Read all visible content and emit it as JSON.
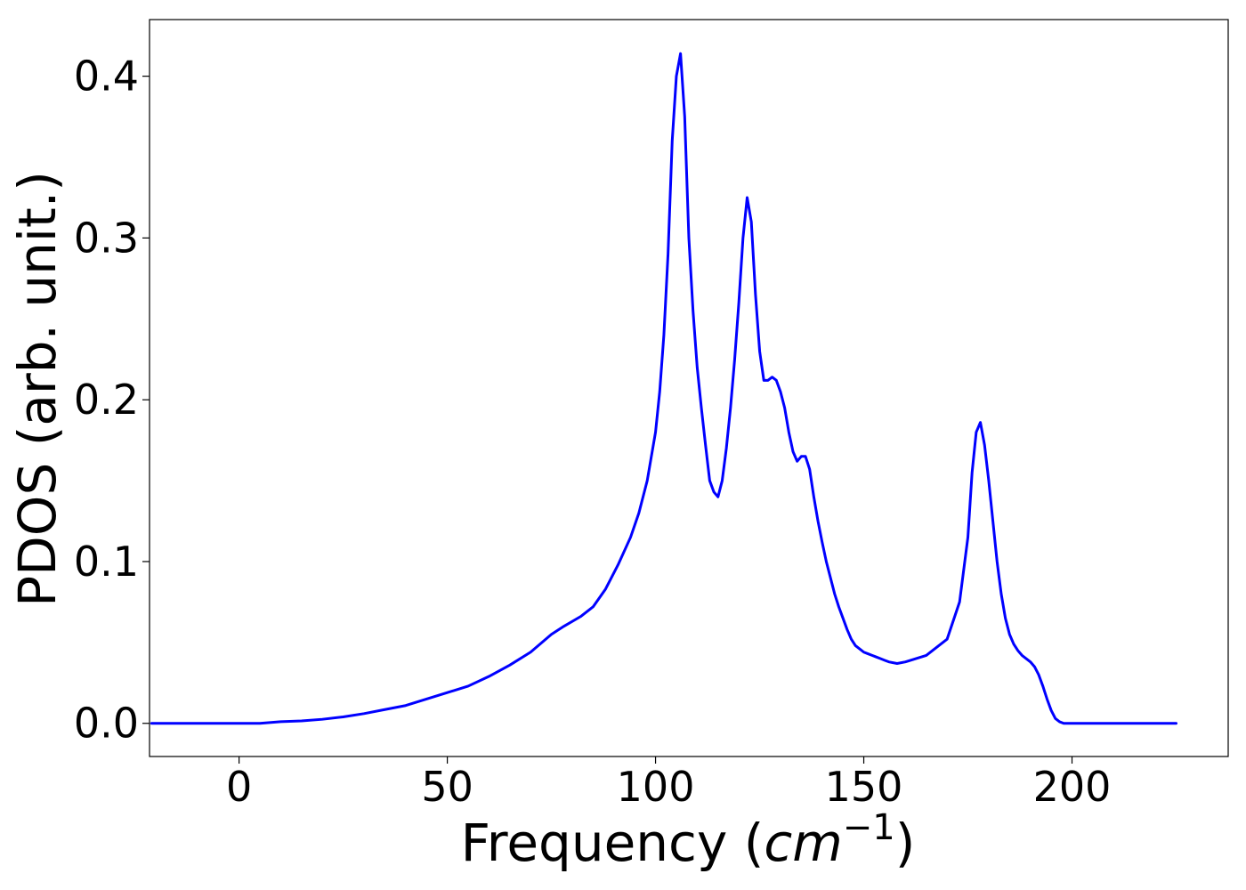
{
  "chart_data": {
    "type": "line",
    "xlabel": "Frequency (",
    "xlabel_unit": "cm",
    "xlabel_exponent": "−1",
    "xlabel_suffix": ")",
    "ylabel": "PDOS (arb. unit.)",
    "xlim": [
      -21.5,
      237.5
    ],
    "ylim": [
      -0.0205,
      0.435
    ],
    "xticks": [
      0,
      50,
      100,
      150,
      200
    ],
    "xtick_labels": [
      "0",
      "50",
      "100",
      "150",
      "200"
    ],
    "yticks": [
      0.0,
      0.1,
      0.2,
      0.3,
      0.4
    ],
    "ytick_labels": [
      "0.0",
      "0.1",
      "0.2",
      "0.3",
      "0.4"
    ],
    "grid": false,
    "legend": "none",
    "series": [
      {
        "color": "#0000ff",
        "x": [
          -21,
          -15,
          -10,
          -5,
          0,
          5,
          10,
          15,
          20,
          25,
          30,
          35,
          40,
          45,
          50,
          55,
          60,
          65,
          70,
          75,
          78,
          82,
          85,
          88,
          91,
          94,
          96,
          98,
          99,
          100,
          101,
          102,
          103,
          104,
          105,
          106,
          107,
          108,
          109,
          110,
          111,
          112,
          113,
          114,
          115,
          116,
          117,
          118,
          119,
          120,
          121,
          122,
          123,
          124,
          125,
          126,
          127,
          128,
          129,
          130,
          131,
          132,
          133,
          134,
          135,
          136,
          137,
          138,
          139,
          140,
          141,
          142,
          143,
          144,
          145,
          146,
          147,
          148,
          149,
          150,
          151,
          152,
          153,
          154,
          155,
          156,
          158,
          160,
          165,
          170,
          173,
          175,
          176,
          177,
          178,
          179,
          180,
          181,
          182,
          183,
          184,
          185,
          186,
          187,
          188,
          189,
          190,
          191,
          192,
          193,
          194,
          195,
          196,
          197,
          198,
          199,
          200,
          201,
          202,
          203,
          204,
          205,
          206,
          207,
          208,
          209,
          210,
          212,
          215,
          220,
          225
        ],
        "y": [
          0.0,
          0.0,
          0.0,
          0.0,
          0.0,
          0.0,
          0.001,
          0.0015,
          0.0025,
          0.004,
          0.006,
          0.0085,
          0.011,
          0.015,
          0.019,
          0.023,
          0.029,
          0.036,
          0.044,
          0.055,
          0.06,
          0.066,
          0.072,
          0.083,
          0.098,
          0.115,
          0.13,
          0.15,
          0.165,
          0.18,
          0.205,
          0.24,
          0.29,
          0.36,
          0.4,
          0.414,
          0.375,
          0.3,
          0.255,
          0.22,
          0.195,
          0.172,
          0.15,
          0.143,
          0.14,
          0.15,
          0.17,
          0.195,
          0.225,
          0.26,
          0.3,
          0.325,
          0.31,
          0.265,
          0.23,
          0.212,
          0.212,
          0.214,
          0.212,
          0.205,
          0.195,
          0.18,
          0.168,
          0.162,
          0.165,
          0.165,
          0.157,
          0.14,
          0.125,
          0.112,
          0.1,
          0.09,
          0.08,
          0.072,
          0.065,
          0.058,
          0.052,
          0.048,
          0.046,
          0.044,
          0.043,
          0.042,
          0.041,
          0.04,
          0.039,
          0.038,
          0.037,
          0.038,
          0.042,
          0.052,
          0.075,
          0.115,
          0.155,
          0.18,
          0.186,
          0.172,
          0.15,
          0.125,
          0.1,
          0.08,
          0.065,
          0.055,
          0.049,
          0.045,
          0.042,
          0.04,
          0.038,
          0.035,
          0.03,
          0.023,
          0.015,
          0.008,
          0.003,
          0.001,
          0.0,
          0.0,
          0.0,
          0.0,
          0.0,
          0.0,
          0.0,
          0.0,
          0.0,
          0.0,
          0.0,
          0.0,
          0.0,
          0.0,
          0.0,
          0.0,
          0.0
        ]
      }
    ]
  }
}
